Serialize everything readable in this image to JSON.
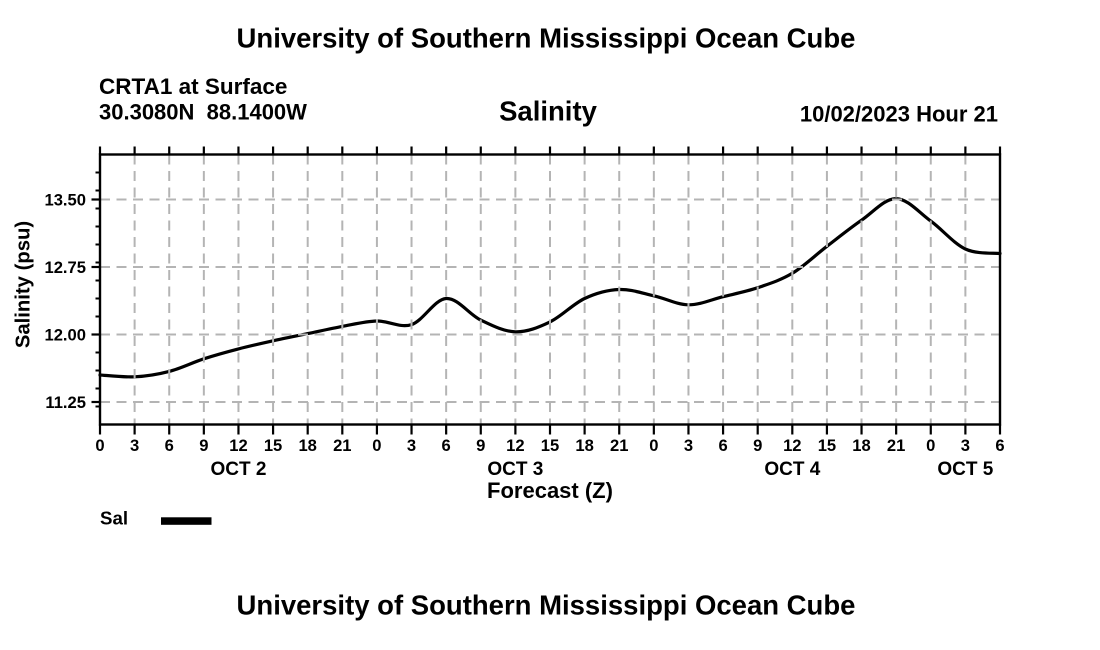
{
  "page": {
    "background": "#ffffff",
    "text_color": "#000000"
  },
  "header": {
    "main_title": "University of Southern Mississippi Ocean Cube",
    "station_line1": "CRTA1 at Surface",
    "station_line2": "30.3080N  88.1400W",
    "variable_title": "Salinity",
    "datetime_label": "10/02/2023 Hour 21"
  },
  "legend": {
    "label": "Sal",
    "swatch_color": "#000000"
  },
  "footer": {
    "next_plot_title": "University of Southern Mississippi Ocean Cube"
  },
  "chart_data": {
    "type": "line",
    "title": "Salinity",
    "xlabel": "Forecast (Z)",
    "ylabel": "Salinity (psu)",
    "xlim": [
      0,
      78
    ],
    "ylim": [
      11.0,
      14.0
    ],
    "x": [
      0,
      3,
      6,
      9,
      12,
      15,
      18,
      21,
      24,
      27,
      30,
      33,
      36,
      39,
      42,
      45,
      48,
      51,
      54,
      57,
      60,
      63,
      66,
      69,
      72,
      75,
      78
    ],
    "x_tick_labels": [
      "0",
      "3",
      "6",
      "9",
      "12",
      "15",
      "18",
      "21",
      "0",
      "3",
      "6",
      "9",
      "12",
      "15",
      "18",
      "21",
      "0",
      "3",
      "6",
      "9",
      "12",
      "15",
      "18",
      "21",
      "0",
      "3",
      "6"
    ],
    "day_labels": [
      {
        "text": "OCT 2",
        "x": 12
      },
      {
        "text": "OCT 3",
        "x": 36
      },
      {
        "text": "OCT 4",
        "x": 60
      },
      {
        "text": "OCT 5",
        "x": 75
      }
    ],
    "series": [
      {
        "name": "Sal",
        "values": [
          11.55,
          11.53,
          11.59,
          11.73,
          11.84,
          11.93,
          12.01,
          12.09,
          12.15,
          12.11,
          12.4,
          12.16,
          12.03,
          12.14,
          12.4,
          12.5,
          12.43,
          12.33,
          12.42,
          12.52,
          12.68,
          12.98,
          13.27,
          13.51,
          13.26,
          12.95,
          12.9
        ]
      }
    ],
    "y_major_ticks": [
      11.25,
      12.0,
      12.75,
      13.5
    ],
    "y_tick_labels": [
      "11.25",
      "12.00",
      "12.75",
      "13.50"
    ],
    "y_minor_tick_step": 0.2,
    "grid": true,
    "grid_color": "#b4b4b4",
    "line_color": "#000000",
    "legend_position": "bottom-left"
  }
}
